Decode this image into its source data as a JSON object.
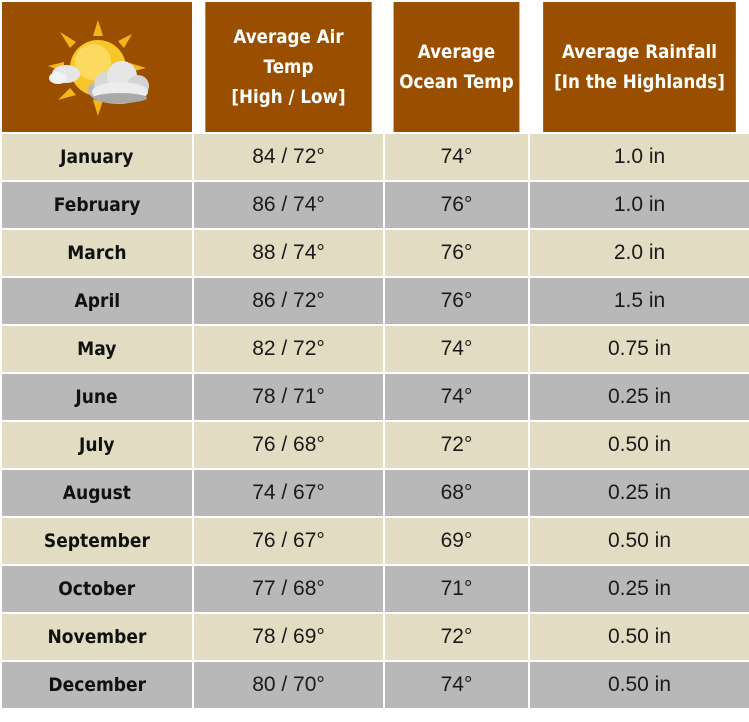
{
  "header": {
    "icon": "sun-behind-cloud-icon",
    "air_temp": [
      "Average Air Temp",
      "[High / Low]"
    ],
    "ocean_temp": [
      "Average",
      "Ocean Temp"
    ],
    "rainfall": [
      "Average Rainfall",
      "[In the Highlands]"
    ]
  },
  "colors": {
    "header_bg": "#9a4f00",
    "row_light": "#e2ddc2",
    "row_dark": "#b8b8b8"
  },
  "rows": [
    {
      "month": "January",
      "air": "84 / 72°",
      "ocean": "74°",
      "rain": "1.0 in"
    },
    {
      "month": "February",
      "air": "86 / 74°",
      "ocean": "76°",
      "rain": "1.0 in"
    },
    {
      "month": "March",
      "air": "88 / 74°",
      "ocean": "76°",
      "rain": "2.0 in"
    },
    {
      "month": "April",
      "air": "86 / 72°",
      "ocean": "76°",
      "rain": "1.5 in"
    },
    {
      "month": "May",
      "air": "82 / 72°",
      "ocean": "74°",
      "rain": "0.75 in"
    },
    {
      "month": "June",
      "air": "78 / 71°",
      "ocean": "74°",
      "rain": "0.25 in"
    },
    {
      "month": "July",
      "air": "76 / 68°",
      "ocean": "72°",
      "rain": "0.50 in"
    },
    {
      "month": "August",
      "air": "74 / 67°",
      "ocean": "68°",
      "rain": "0.25 in"
    },
    {
      "month": "September",
      "air": "76 / 67°",
      "ocean": "69°",
      "rain": "0.50 in"
    },
    {
      "month": "October",
      "air": "77 / 68°",
      "ocean": "71°",
      "rain": "0.25 in"
    },
    {
      "month": "November",
      "air": "78 / 69°",
      "ocean": "72°",
      "rain": "0.50 in"
    },
    {
      "month": "December",
      "air": "80 / 70°",
      "ocean": "74°",
      "rain": "0.50 in"
    }
  ]
}
